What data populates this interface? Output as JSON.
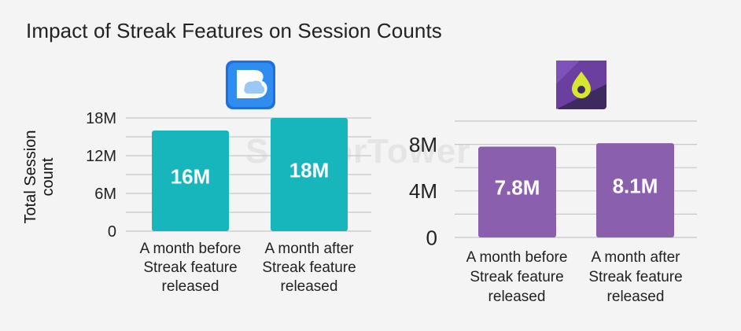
{
  "title": "Impact of Streak Features on Session Counts",
  "watermark": "SensorTower",
  "colors": {
    "left_bar": "#17b6bc",
    "right_bar": "#8a5fad",
    "grid": "#c8c8c8",
    "background": "#f4f4f4"
  },
  "icons": {
    "left": "blue-chat-bubble-app-icon",
    "right": "purple-drop-app-icon"
  },
  "chart_data": [
    {
      "type": "bar",
      "title": "",
      "xlabel": "",
      "ylabel": "Total Session count",
      "ylabel_lines": [
        "Total Session",
        "count"
      ],
      "ylim": [
        0,
        18
      ],
      "yticks": [
        {
          "value": 0,
          "label": "0"
        },
        {
          "value": 6,
          "label": "6M"
        },
        {
          "value": 12,
          "label": "12M"
        },
        {
          "value": 18,
          "label": "18M"
        }
      ],
      "categories": [
        [
          "A month before",
          "Streak feature",
          "released"
        ],
        [
          "A month after",
          "Streak feature",
          "released"
        ]
      ],
      "values": [
        16,
        18
      ],
      "data_labels": [
        "16M",
        "18M"
      ],
      "grid": true,
      "color": "#17b6bc"
    },
    {
      "type": "bar",
      "title": "",
      "xlabel": "",
      "ylabel": "",
      "ylim": [
        0,
        10
      ],
      "yticks": [
        {
          "value": 0,
          "label": "0"
        },
        {
          "value": 4,
          "label": "4M"
        },
        {
          "value": 8,
          "label": "8M"
        }
      ],
      "categories": [
        [
          "A month before",
          "Streak feature",
          "released"
        ],
        [
          "A month after",
          "Streak feature",
          "released"
        ]
      ],
      "values": [
        7.8,
        8.1
      ],
      "data_labels": [
        "7.8M",
        "8.1M"
      ],
      "grid": true,
      "color": "#8a5fad"
    }
  ]
}
